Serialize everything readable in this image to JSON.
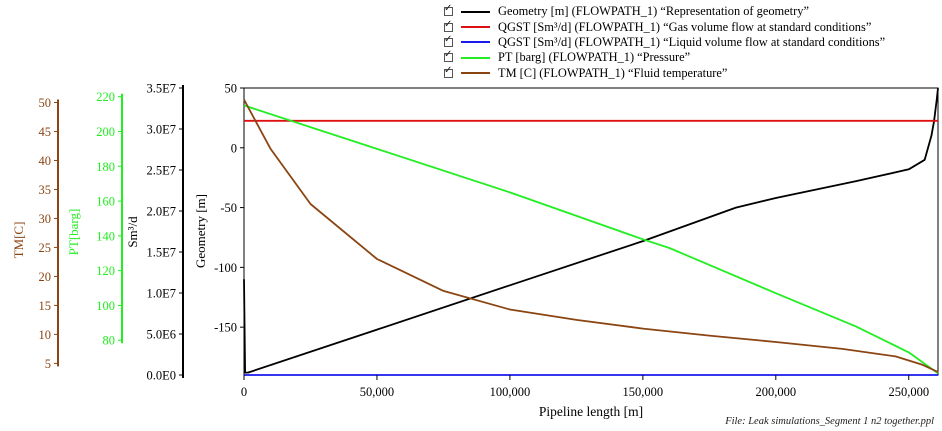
{
  "legend": [
    {
      "label": "Geometry [m] (FLOWPATH_1) “Representation of geometry”",
      "color": "#000000",
      "checked": true
    },
    {
      "label": "QGST [Sm³/d] (FLOWPATH_1) “Gas volume flow at standard conditions”",
      "color": "#dd1111",
      "checked": true
    },
    {
      "label": "QGST [Sm³/d] (FLOWPATH_1) “Liquid volume flow at standard conditions”",
      "color": "#1a1aee",
      "checked": true
    },
    {
      "label": "PT [barg] (FLOWPATH_1) “Pressure”",
      "color": "#22ee22",
      "checked": true
    },
    {
      "label": "TM [C] (FLOWPATH_1) “Fluid temperature”",
      "color": "#8b4513",
      "checked": true
    }
  ],
  "file_note": "File: Leak simulations_Segment 1 n2 together.ppl",
  "chart_data": {
    "type": "line",
    "xlabel": "Pipeline length [m]",
    "x_ticks": [
      "0",
      "50,000",
      "100,000",
      "150,000",
      "200,000",
      "250,000"
    ],
    "x_tick_values": [
      0,
      50000,
      100000,
      150000,
      200000,
      250000
    ],
    "xlim": [
      0,
      261000
    ],
    "axes": {
      "geometry": {
        "label": "Geometry [m]",
        "color": "#000000",
        "ylim": [
          -190,
          50
        ],
        "ticks": [
          50,
          0,
          -50,
          -100,
          -150
        ],
        "tick_labels": [
          "50",
          "0",
          "-50",
          "-100",
          "-150"
        ]
      },
      "sm3d": {
        "label": "Sm³/d",
        "color": "#000000",
        "ylim": [
          0,
          35000000
        ],
        "ticks": [
          35000000,
          30000000,
          25000000,
          20000000,
          15000000,
          10000000,
          5000000,
          0
        ],
        "tick_labels": [
          "3.5E7",
          "3.0E7",
          "2.5E7",
          "2.0E7",
          "1.5E7",
          "1.0E7",
          "5.0E6",
          "0.0E0"
        ]
      },
      "pt": {
        "label": "PT[barg]",
        "color": "#22ee22",
        "ylim": [
          60,
          225
        ],
        "ticks": [
          220,
          200,
          180,
          160,
          140,
          120,
          100,
          80
        ],
        "tick_labels": [
          "220",
          "200",
          "180",
          "160",
          "140",
          "120",
          "100",
          "80"
        ]
      },
      "tm": {
        "label": "TM[C]",
        "color": "#8b4513",
        "ylim": [
          3,
          52.5
        ],
        "ticks": [
          50,
          45,
          40,
          35,
          30,
          25,
          20,
          15,
          10,
          5
        ],
        "tick_labels": [
          "50",
          "45",
          "40",
          "35",
          "30",
          "25",
          "20",
          "15",
          "10",
          "5"
        ]
      }
    },
    "series": [
      {
        "name": "Geometry [m]",
        "axis": "geometry",
        "color": "#000000",
        "x": [
          0,
          400,
          800,
          1500,
          50000,
          100000,
          150000,
          185000,
          200000,
          230000,
          250000,
          256000,
          258500,
          259500,
          260500,
          261000
        ],
        "y": [
          -110,
          -188,
          -188,
          -188,
          -152,
          -115,
          -78,
          -50,
          -42,
          -28,
          -18,
          -10,
          10,
          22,
          40,
          50
        ]
      },
      {
        "name": "QGST [Sm³/d] Gas",
        "axis": "sm3d",
        "color": "#dd1111",
        "x": [
          0,
          261000
        ],
        "y": [
          31000000,
          31000000
        ]
      },
      {
        "name": "QGST [Sm³/d] Liquid",
        "axis": "sm3d",
        "color": "#1a1aee",
        "x": [
          0,
          261000
        ],
        "y": [
          0,
          0
        ]
      },
      {
        "name": "PT [barg]",
        "axis": "pt",
        "color": "#22ee22",
        "x": [
          0,
          50000,
          100000,
          150000,
          160000,
          200000,
          230000,
          250000,
          261000
        ],
        "y": [
          215,
          190,
          165,
          138,
          133,
          107,
          88,
          73,
          61
        ]
      },
      {
        "name": "TM [C]",
        "axis": "tm",
        "color": "#8b4513",
        "x": [
          0,
          10000,
          25000,
          50000,
          75000,
          100000,
          125000,
          150000,
          175000,
          200000,
          225000,
          245000,
          255000,
          261000
        ],
        "y": [
          50.5,
          42,
          32.5,
          23,
          17.5,
          14.3,
          12.5,
          11.0,
          9.8,
          8.7,
          7.5,
          6.2,
          4.8,
          3.5
        ]
      }
    ]
  }
}
